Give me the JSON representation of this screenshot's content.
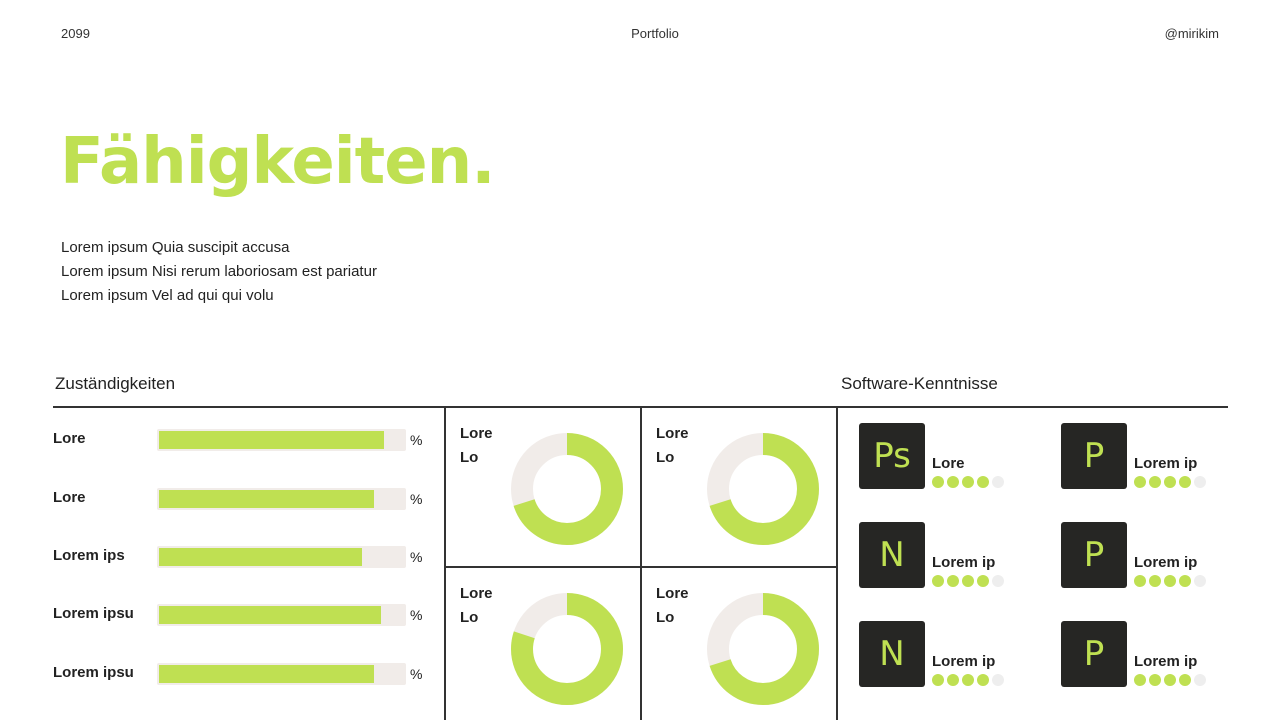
{
  "header": {
    "left": "2099",
    "center": "Portfolio",
    "right": "@mirikim"
  },
  "title": "Fähigkeiten.",
  "description": [
    "Lorem ipsum Quia suscipit accusa",
    "Lorem ipsum Nisi rerum laboriosam est pariatur",
    "Lorem ipsum Vel ad qui qui volu"
  ],
  "sections": {
    "left": "Zuständigkeiten",
    "right": "Software-Kenntnisse"
  },
  "accent_color": "#bfe052",
  "track_color": "#f1ece9",
  "icon_bg": "#262624",
  "skills": [
    {
      "label": "Lore",
      "percent_sign": "%",
      "value": 0.91
    },
    {
      "label": "Lore",
      "percent_sign": "%",
      "value": 0.87
    },
    {
      "label": "Lorem ips",
      "percent_sign": "%",
      "value": 0.82
    },
    {
      "label": "Lorem ipsu",
      "percent_sign": "%",
      "value": 0.9
    },
    {
      "label": "Lorem ipsu",
      "percent_sign": "%",
      "value": 0.87
    }
  ],
  "donuts": [
    {
      "line1": "Lore",
      "line2": "Lo",
      "value": 0.7
    },
    {
      "line1": "Lore",
      "line2": "Lo",
      "value": 0.7
    },
    {
      "line1": "Lore",
      "line2": "Lo",
      "value": 0.8
    },
    {
      "line1": "Lore",
      "line2": "Lo",
      "value": 0.7
    }
  ],
  "software": [
    {
      "icon": "Ps",
      "label": "Lore",
      "rating": 4,
      "max": 5
    },
    {
      "icon": "P",
      "label": "Lorem ip",
      "rating": 4,
      "max": 5
    },
    {
      "icon": "N",
      "label": "Lorem ip",
      "rating": 4,
      "max": 5
    },
    {
      "icon": "P",
      "label": "Lorem ip",
      "rating": 4,
      "max": 5
    },
    {
      "icon": "N",
      "label": "Lorem ip",
      "rating": 4,
      "max": 5
    },
    {
      "icon": "P",
      "label": "Lorem ip",
      "rating": 4,
      "max": 5
    }
  ]
}
